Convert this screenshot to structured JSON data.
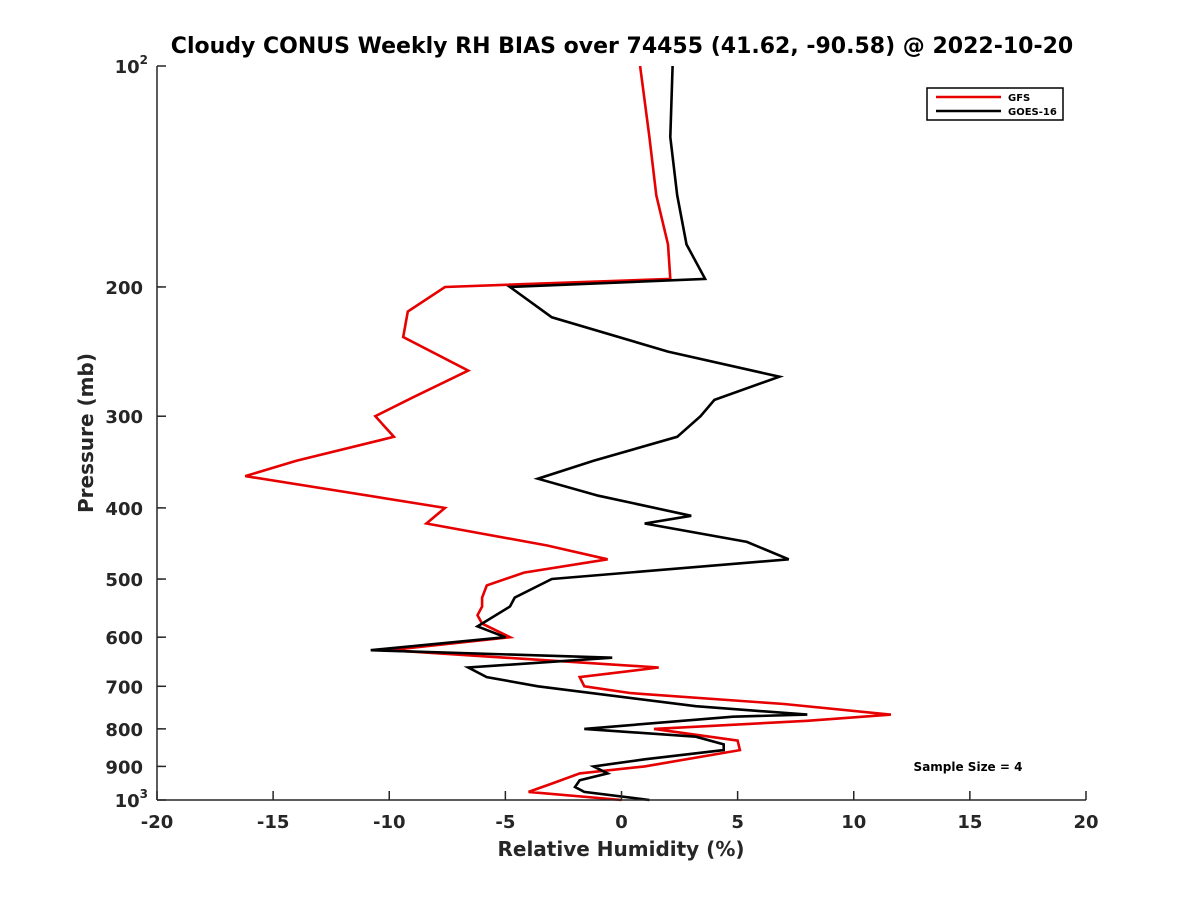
{
  "chart_data": {
    "type": "line",
    "title": "Cloudy CONUS Weekly RH BIAS over 74455 (41.62, -90.58) @ 2022-10-20",
    "xlabel": "Relative Humidity (%)",
    "ylabel": "Pressure (mb)",
    "xlim": [
      -20,
      20
    ],
    "ylim": [
      100,
      1000
    ],
    "y_scale": "log",
    "y_reversed": true,
    "grid": false,
    "legend_position": "top-right",
    "x_ticks": [
      -20,
      -15,
      -10,
      -5,
      0,
      5,
      10,
      15,
      20
    ],
    "x_tick_labels": [
      "-20",
      "-15",
      "-10",
      "-5",
      "0",
      "5",
      "10",
      "15",
      "20"
    ],
    "y_ticks": [
      {
        "value": 100,
        "base": "10",
        "exp": "2"
      },
      {
        "value": 200,
        "label": "200"
      },
      {
        "value": 300,
        "label": "300"
      },
      {
        "value": 400,
        "label": "400"
      },
      {
        "value": 500,
        "label": "500"
      },
      {
        "value": 600,
        "label": "600"
      },
      {
        "value": 700,
        "label": "700"
      },
      {
        "value": 800,
        "label": "800"
      },
      {
        "value": 900,
        "label": "900"
      },
      {
        "value": 1000,
        "base": "10",
        "exp": "3"
      }
    ],
    "y_minor_ticks": [
      200,
      300,
      400,
      500,
      600,
      700,
      800,
      900
    ],
    "annotation": "Sample Size = 4",
    "series": [
      {
        "name": "GFS",
        "color": "#e60000",
        "points": [
          [
            0.8,
            100
          ],
          [
            1.2,
            125
          ],
          [
            1.5,
            150
          ],
          [
            2.0,
            175
          ],
          [
            2.1,
            195
          ],
          [
            -7.6,
            200
          ],
          [
            -9.2,
            216
          ],
          [
            -9.4,
            234
          ],
          [
            -6.6,
            260
          ],
          [
            -9.0,
            283
          ],
          [
            -10.6,
            300
          ],
          [
            -9.8,
            320
          ],
          [
            -14.0,
            345
          ],
          [
            -16.2,
            362
          ],
          [
            -7.6,
            400
          ],
          [
            -8.4,
            420
          ],
          [
            -3.2,
            450
          ],
          [
            -0.6,
            470
          ],
          [
            -4.2,
            490
          ],
          [
            -5.8,
            510
          ],
          [
            -6.0,
            530
          ],
          [
            -6.0,
            545
          ],
          [
            -6.2,
            560
          ],
          [
            -6.0,
            575
          ],
          [
            -4.8,
            600
          ],
          [
            -10.0,
            625
          ],
          [
            1.6,
            660
          ],
          [
            -1.8,
            680
          ],
          [
            -1.6,
            700
          ],
          [
            0.4,
            715
          ],
          [
            7.0,
            740
          ],
          [
            11.6,
            765
          ],
          [
            8.0,
            780
          ],
          [
            1.4,
            800
          ],
          [
            5.0,
            830
          ],
          [
            5.1,
            855
          ],
          [
            1.0,
            900
          ],
          [
            -1.8,
            920
          ],
          [
            -3.0,
            950
          ],
          [
            -4.0,
            975
          ],
          [
            0.0,
            1000
          ]
        ]
      },
      {
        "name": "GOES-16",
        "color": "#000000",
        "points": [
          [
            2.2,
            100
          ],
          [
            2.1,
            125
          ],
          [
            2.4,
            150
          ],
          [
            2.8,
            175
          ],
          [
            3.6,
            195
          ],
          [
            -4.8,
            200
          ],
          [
            -3.0,
            220
          ],
          [
            2.0,
            245
          ],
          [
            6.8,
            265
          ],
          [
            4.0,
            285
          ],
          [
            3.4,
            300
          ],
          [
            2.4,
            320
          ],
          [
            -1.2,
            345
          ],
          [
            -3.6,
            365
          ],
          [
            -1.0,
            385
          ],
          [
            3.0,
            410
          ],
          [
            1.0,
            420
          ],
          [
            5.4,
            445
          ],
          [
            7.2,
            470
          ],
          [
            -3.0,
            500
          ],
          [
            -4.6,
            530
          ],
          [
            -4.8,
            545
          ],
          [
            -6.2,
            580
          ],
          [
            -5.0,
            600
          ],
          [
            -10.8,
            625
          ],
          [
            -0.4,
            640
          ],
          [
            -6.6,
            660
          ],
          [
            -5.8,
            680
          ],
          [
            -3.6,
            700
          ],
          [
            3.2,
            745
          ],
          [
            8.0,
            765
          ],
          [
            4.8,
            770
          ],
          [
            -1.6,
            800
          ],
          [
            3.2,
            820
          ],
          [
            4.4,
            840
          ],
          [
            4.4,
            855
          ],
          [
            1.0,
            880
          ],
          [
            -1.2,
            900
          ],
          [
            -0.6,
            920
          ],
          [
            -1.8,
            940
          ],
          [
            -2.0,
            960
          ],
          [
            -1.6,
            975
          ],
          [
            1.2,
            1000
          ]
        ]
      }
    ]
  }
}
